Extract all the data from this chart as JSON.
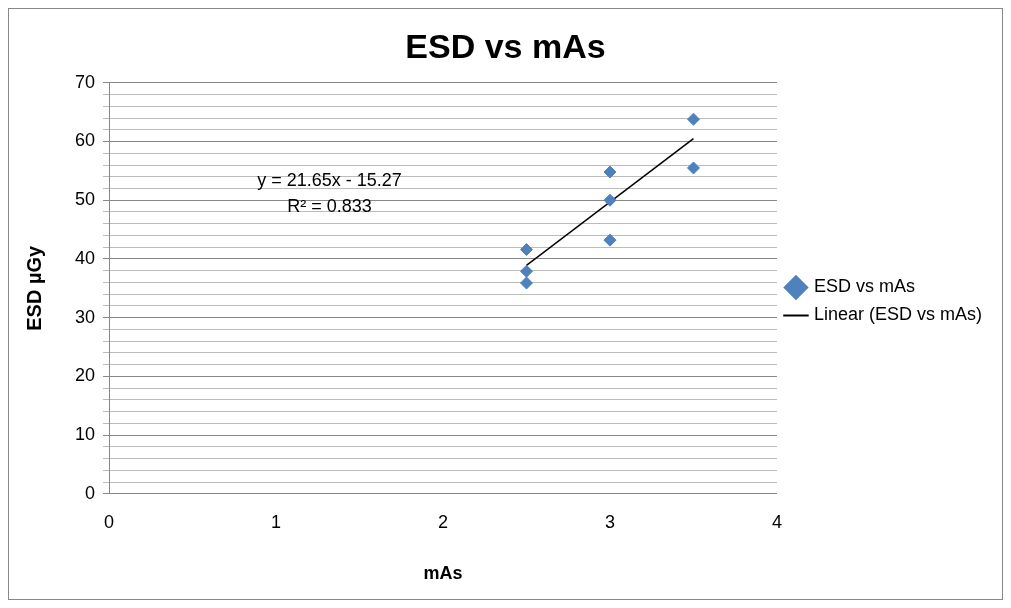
{
  "chart_data": {
    "type": "scatter",
    "title": "ESD vs mAs",
    "xlabel": "mAs",
    "ylabel": "ESD µGy",
    "xlim": [
      0,
      4
    ],
    "xticks": [
      0,
      1,
      2,
      3,
      4
    ],
    "ylim": [
      0,
      70
    ],
    "yticks": [
      0,
      {
        "value": 2,
        "label": null
      },
      {
        "value": 4,
        "label": null
      },
      {
        "value": 6,
        "label": null
      },
      {
        "value": 8,
        "label": null
      },
      10,
      {
        "value": 12,
        "label": null
      },
      {
        "value": 14,
        "label": null
      },
      {
        "value": 16,
        "label": null
      },
      {
        "value": 18,
        "label": null
      },
      20,
      {
        "value": 22,
        "label": null
      },
      {
        "value": 24,
        "label": null
      },
      {
        "value": 26,
        "label": null
      },
      {
        "value": 28,
        "label": null
      },
      30,
      {
        "value": 32,
        "label": null
      },
      {
        "value": 34,
        "label": null
      },
      {
        "value": 36,
        "label": null
      },
      {
        "value": 38,
        "label": null
      },
      40,
      {
        "value": 42,
        "label": null
      },
      {
        "value": 44,
        "label": null
      },
      {
        "value": 46,
        "label": null
      },
      {
        "value": 48,
        "label": null
      },
      50,
      {
        "value": 52,
        "label": null
      },
      {
        "value": 54,
        "label": null
      },
      {
        "value": 56,
        "label": null
      },
      {
        "value": 58,
        "label": null
      },
      60,
      {
        "value": 62,
        "label": null
      },
      {
        "value": 64,
        "label": null
      },
      {
        "value": 66,
        "label": null
      },
      {
        "value": 68,
        "label": null
      },
      70
    ],
    "grid": "y",
    "legend": "right",
    "series": [
      {
        "name": "ESD vs mAs",
        "marker": "diamond",
        "color": "#4f81bd",
        "x": [
          2.5,
          2.5,
          2.5,
          3,
          3,
          3,
          3.5,
          3.5
        ],
        "values": [
          41.6,
          37.9,
          35.9,
          54.8,
          50.0,
          43.2,
          63.8,
          55.5
        ]
      },
      {
        "name": "Linear (ESD vs mAs)",
        "type": "line",
        "color": "#000000",
        "x": [
          2.5,
          3.5
        ],
        "values": [
          38.9,
          60.5
        ]
      }
    ],
    "annotations": [
      "y = 21.65x - 15.27",
      "R² = 0.833"
    ]
  }
}
